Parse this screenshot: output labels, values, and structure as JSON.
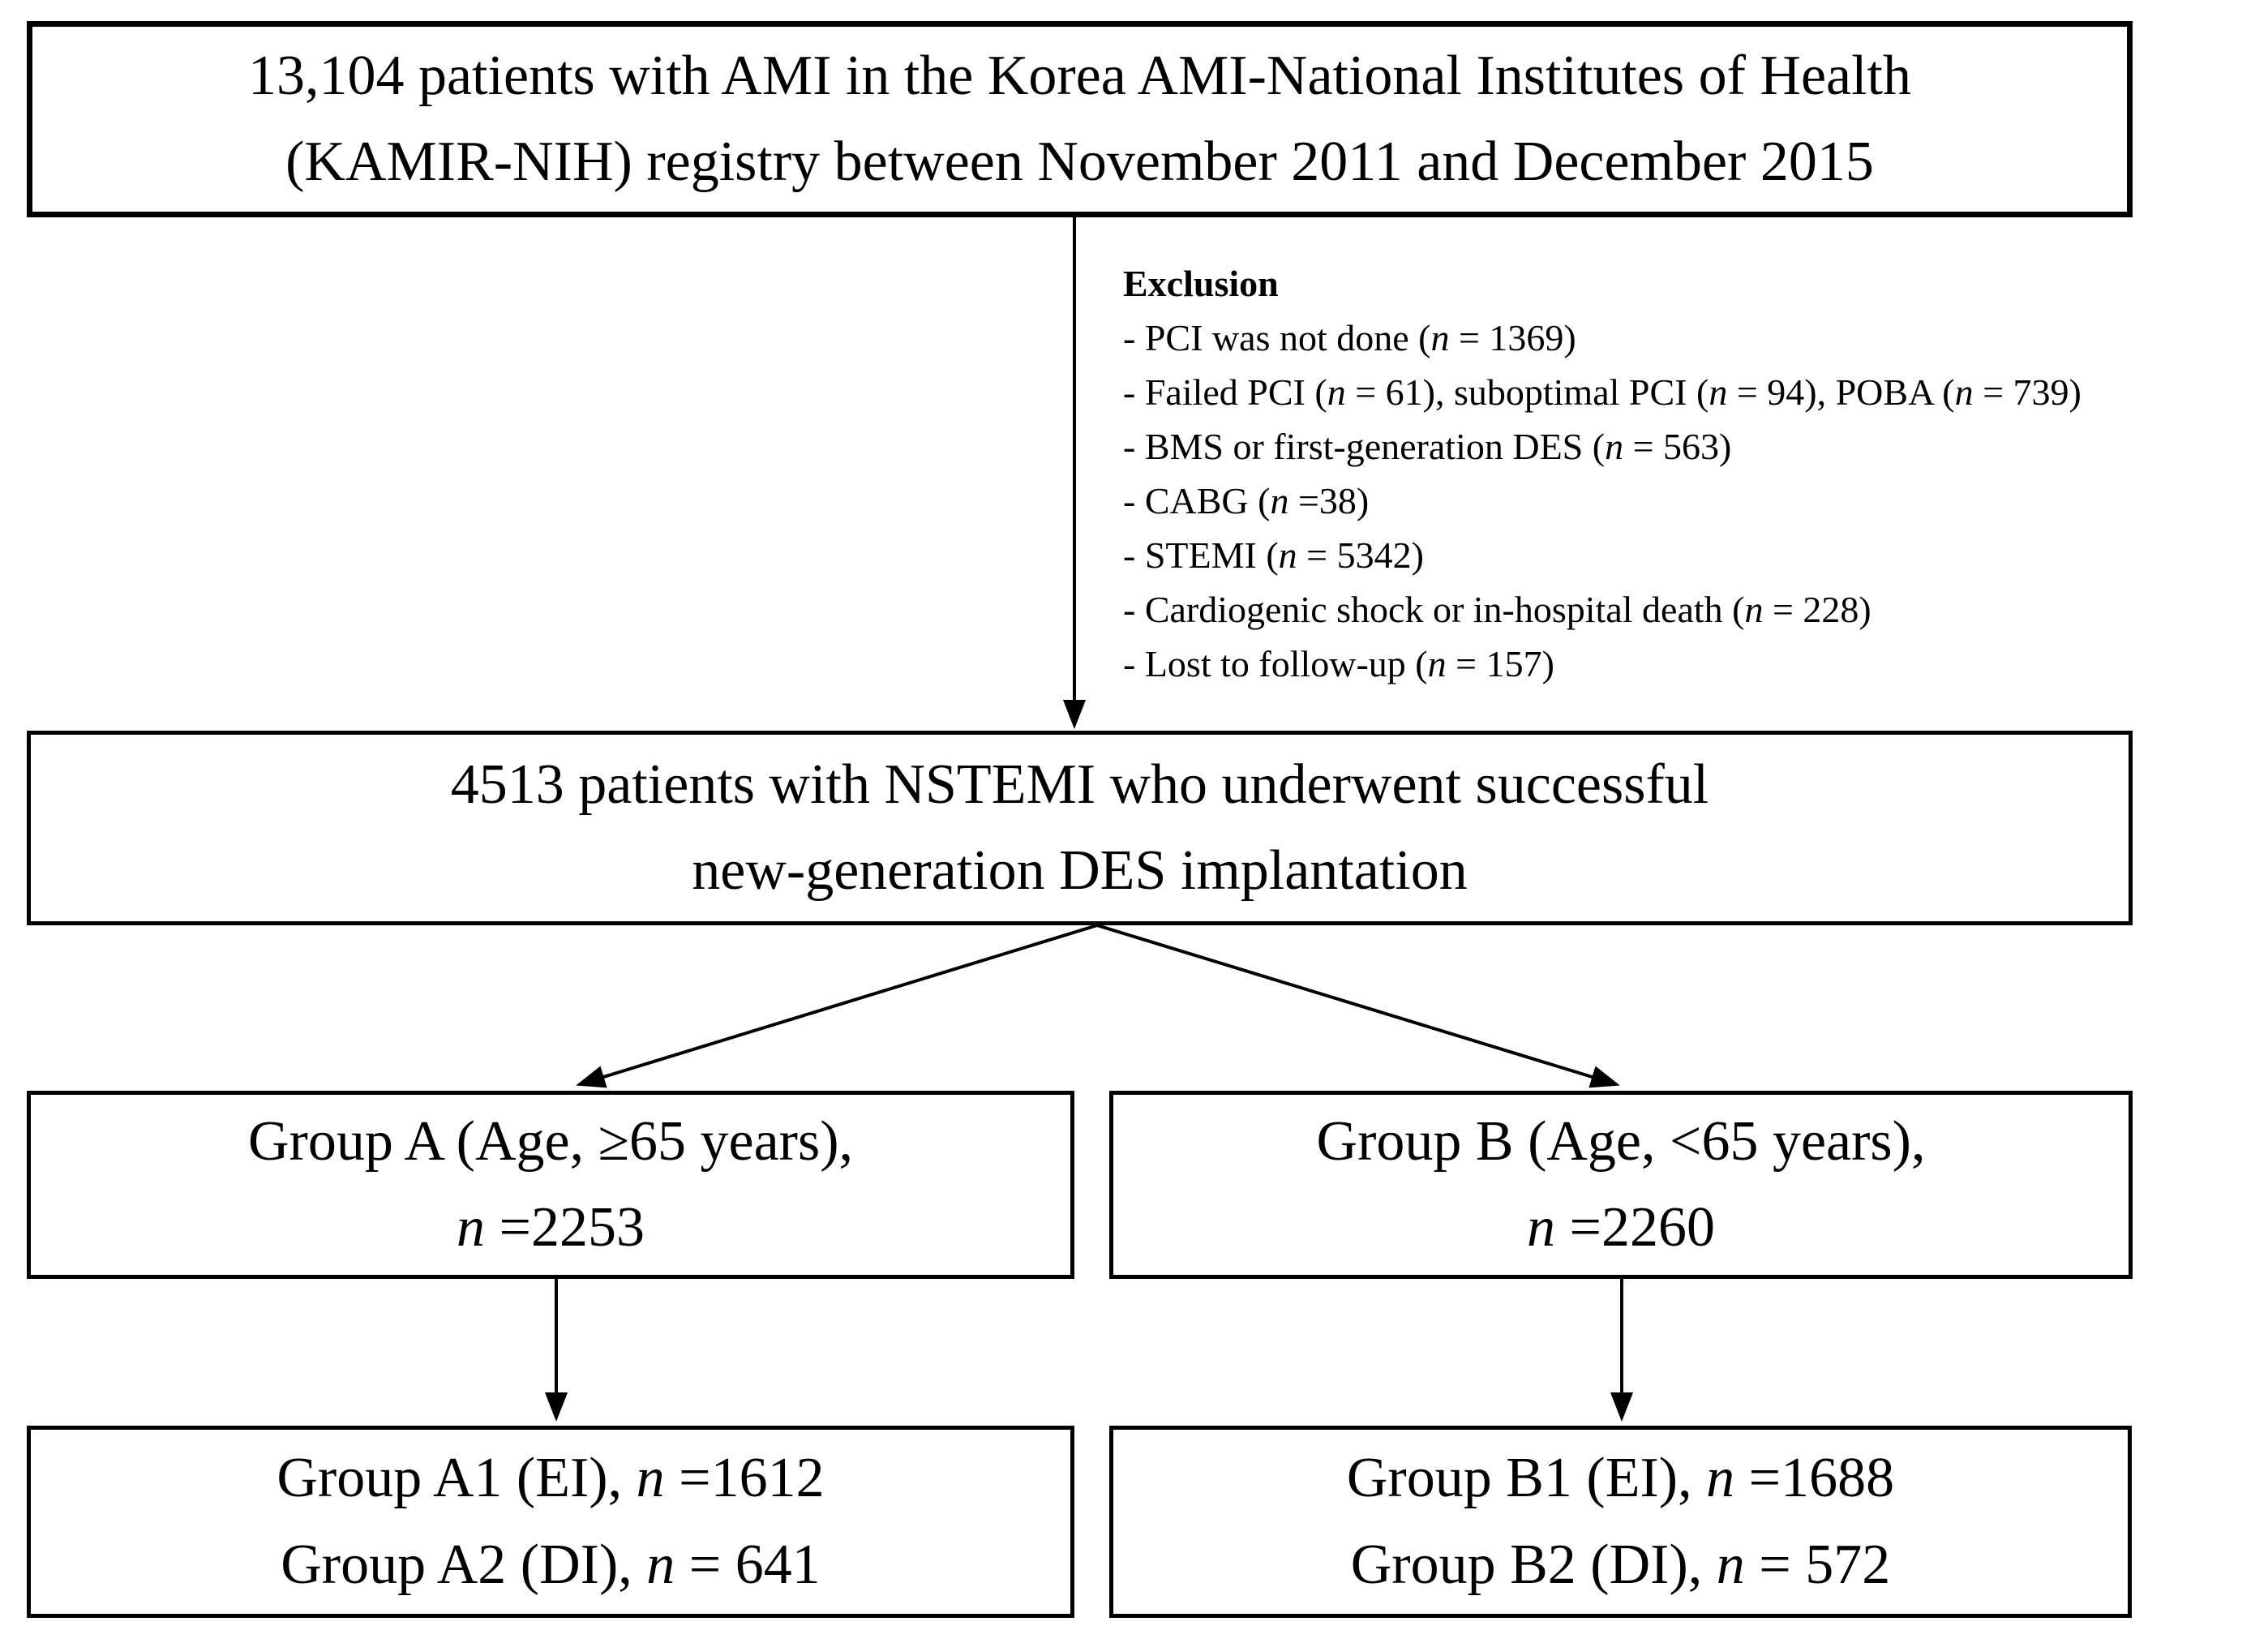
{
  "colors": {
    "background": "#ffffff",
    "text": "#000000",
    "border": "#000000"
  },
  "diagram": {
    "box_registry": {
      "line1": "13,104 patients with AMI in the Korea AMI-National Institutes of Health",
      "line2": "(KAMIR-NIH) registry between November 2011 and December 2015"
    },
    "exclusion": {
      "title": "Exclusion",
      "items": [
        "- PCI was not done (n = 1369)",
        "- Failed PCI (n = 61), suboptimal PCI (n = 94), POBA (n = 739)",
        "- BMS or first-generation DES (n = 563)",
        "- CABG (n =38)",
        "- STEMI (n = 5342)",
        "- Cardiogenic shock or in-hospital death (n = 228)",
        "- Lost to follow-up (n = 157)"
      ]
    },
    "box_nstemi": {
      "line1": "4513 patients with NSTEMI who underwent successful",
      "line2": "new-generation DES implantation"
    },
    "box_group_a": {
      "line1": "Group A (Age, ≥65 years),",
      "line2": "n =2253"
    },
    "box_group_b": {
      "line1": "Group B (Age, <65 years),",
      "line2": "n =2260"
    },
    "box_group_a_sub": {
      "line1": "Group A1 (EI), n =1612",
      "line2": "Group A2 (DI), n = 641"
    },
    "box_group_b_sub": {
      "line1": "Group B1 (EI), n =1688",
      "line2": "Group B2 (DI), n = 572"
    }
  }
}
